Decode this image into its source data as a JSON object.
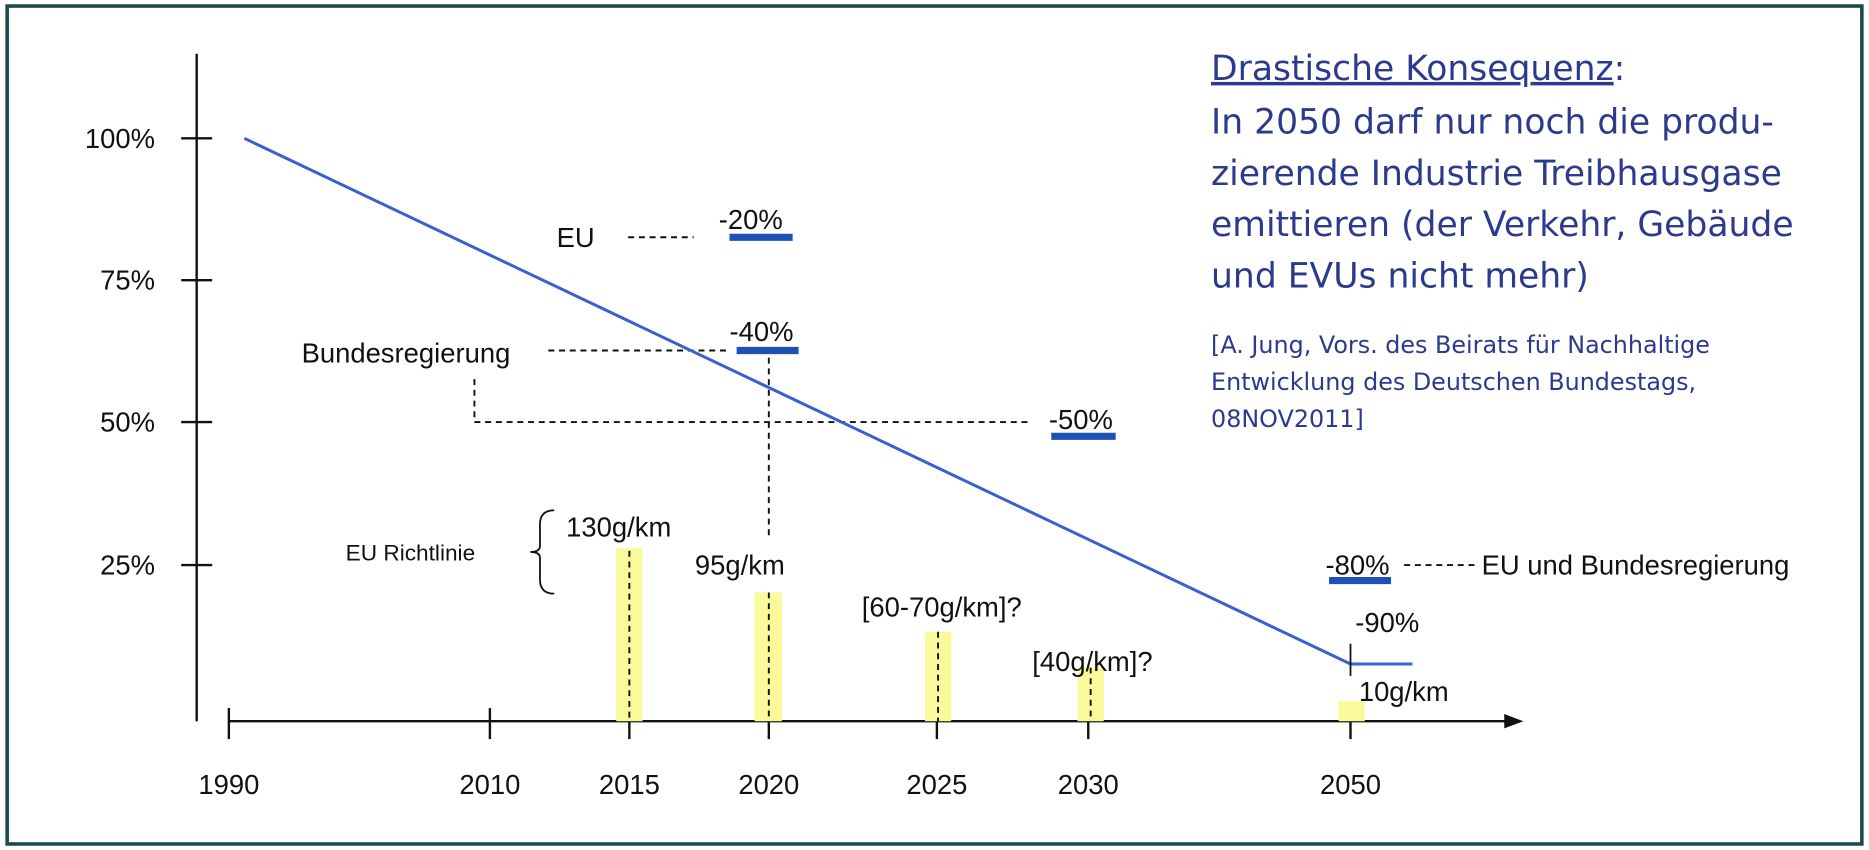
{
  "diagram": {
    "y_labels": [
      "100%",
      "75%",
      "50%",
      "25%"
    ],
    "x_labels": [
      "1990",
      "2010",
      "2015",
      "2020",
      "2025",
      "2030",
      "2050"
    ],
    "targets": {
      "eu": "EU",
      "eu_value": "-20%",
      "bund": "Bundesregierung",
      "bund_value": "-40%",
      "value_50": "-50%",
      "value_80": "-80%",
      "eu_bund": "EU und Bundesregierung",
      "value_90": "-90%"
    },
    "richtlinie": "EU Richtlinie",
    "bar_labels": [
      "130g/km",
      "95g/km",
      "[60-70g/km]?",
      "[40g/km]?",
      "10g/km"
    ]
  },
  "text": {
    "heading": "Drastische Konsequenz",
    "heading_suffix": ":",
    "lines": [
      "In 2050 darf nur noch die produ-",
      "zierende Industrie Treibhausgase",
      "emittieren (der Verkehr, Gebäude",
      "und EVUs nicht mehr)"
    ],
    "citation": [
      "[A. Jung, Vors. des Beirats für Nachhaltige",
      "Entwicklung des Deutschen Bundestags,",
      "08NOV2011]"
    ]
  }
}
